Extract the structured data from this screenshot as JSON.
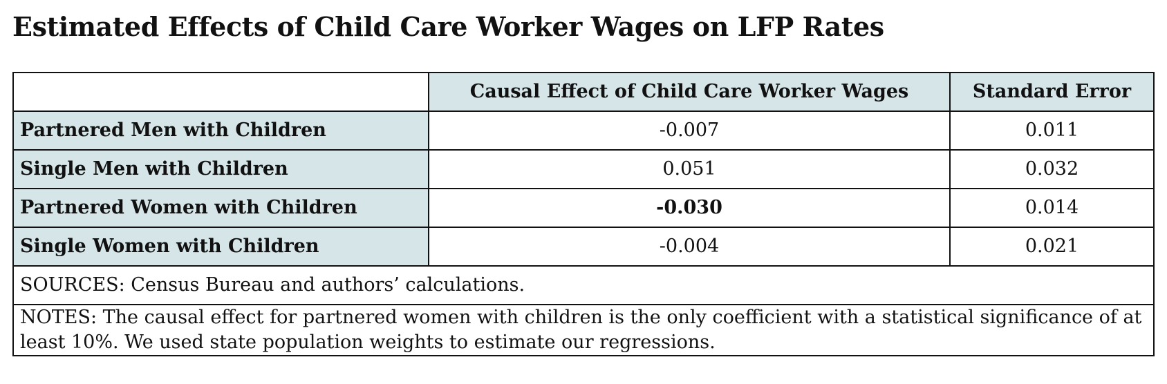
{
  "title": "Estimated Effects of Child Care Worker Wages on LFP Rates",
  "table": {
    "headers": {
      "corner": "",
      "effect": "Causal Effect of Child Care Worker Wages",
      "se": "Standard Error"
    },
    "rows": [
      {
        "label": "Partnered Men with Children",
        "effect": "-0.007",
        "se": "0.011",
        "effect_bold": false
      },
      {
        "label": "Single Men with Children",
        "effect": "0.051",
        "se": "0.032",
        "effect_bold": false
      },
      {
        "label": "Partnered Women with Children",
        "effect": "-0.030",
        "se": "0.014",
        "effect_bold": true
      },
      {
        "label": "Single Women with Children",
        "effect": "-0.004",
        "se": "0.021",
        "effect_bold": false
      }
    ],
    "sources": "SOURCES: Census Bureau and authors’ calculations.",
    "notes": "NOTES: The causal effect for partnered women with children is the only coefficient with a statistical significance of at least 10%. We used state population weights to estimate our regressions."
  },
  "colors": {
    "header_fill": "#d5e5e8",
    "border": "#111111",
    "text": "#111111"
  }
}
